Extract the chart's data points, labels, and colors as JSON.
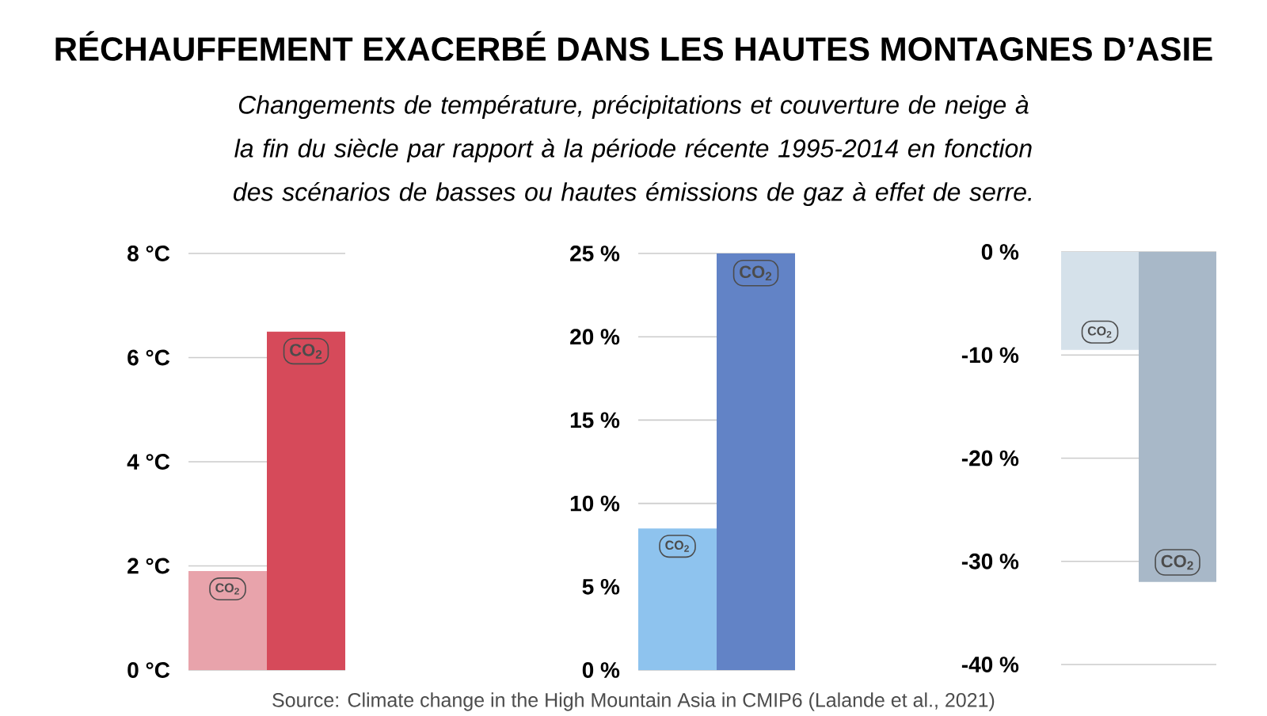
{
  "chart_data": [
    {
      "type": "bar",
      "title": "RÉCHAUFFEMENT EXACERBÉ  DANS LES HAUTES MONTAGNES D’ASIE",
      "subtitle": "Changements de température, précipitations et couverture de neige à la fin du siècle par rapport à la période récente 1995-2014 en fonction des scénarios de basses ou hautes émissions de gaz à effet de serre.",
      "categories": [
        null,
        null
      ],
      "values": [
        1.9,
        6.5
      ],
      "colors": [
        "#e8a3ab",
        "#d64a5a"
      ],
      "ylim": [
        0,
        8
      ],
      "yticks": [
        {
          "value": 0,
          "label": "0 °C"
        },
        {
          "value": 2,
          "label": "2 °C"
        },
        {
          "value": 4,
          "label": "4 °C"
        },
        {
          "value": 6,
          "label": "6 °C"
        },
        {
          "value": 8,
          "label": "8 °C"
        }
      ],
      "grid": "y",
      "tick_labels": "y",
      "annotations": [
        "CO$_{2}$",
        "CO$_{2}$"
      ]
    },
    {
      "type": "bar",
      "categories": [
        null,
        null
      ],
      "values": [
        8.5,
        25
      ],
      "colors": [
        "#8ec3ee",
        "#6283c6"
      ],
      "ylim": [
        0,
        25
      ],
      "yticks": [
        {
          "value": 0,
          "label": "0 %"
        },
        {
          "value": 5,
          "label": "5 %"
        },
        {
          "value": 10,
          "label": "10 %"
        },
        {
          "value": 15,
          "label": "15 %"
        },
        {
          "value": 20,
          "label": "20 %"
        },
        {
          "value": 25,
          "label": "25 %"
        }
      ],
      "grid": "y",
      "tick_labels": "y",
      "annotations": [
        "CO$_{2}$",
        "CO$_{2}$"
      ]
    },
    {
      "type": "bar",
      "categories": [
        null,
        null
      ],
      "values": [
        -9.5,
        -32
      ],
      "colors": [
        "#d5e1ea",
        "#a8b8c8"
      ],
      "ylim": [
        -40,
        0
      ],
      "yticks": [
        {
          "value": -40,
          "label": "-40 %"
        },
        {
          "value": -30,
          "label": "-30 %"
        },
        {
          "value": -20,
          "label": "-20 %"
        },
        {
          "value": -10,
          "label": "-10 %"
        },
        {
          "value": 0,
          "label": "0 %"
        }
      ],
      "grid": "y",
      "tick_labels": "y",
      "annotations": [
        "CO$_{2}$",
        "CO$_{2}$",
        "Source: Climate change in the High Mountain Asia in CMIP6 (Lalande et al., 2021)"
      ]
    }
  ]
}
